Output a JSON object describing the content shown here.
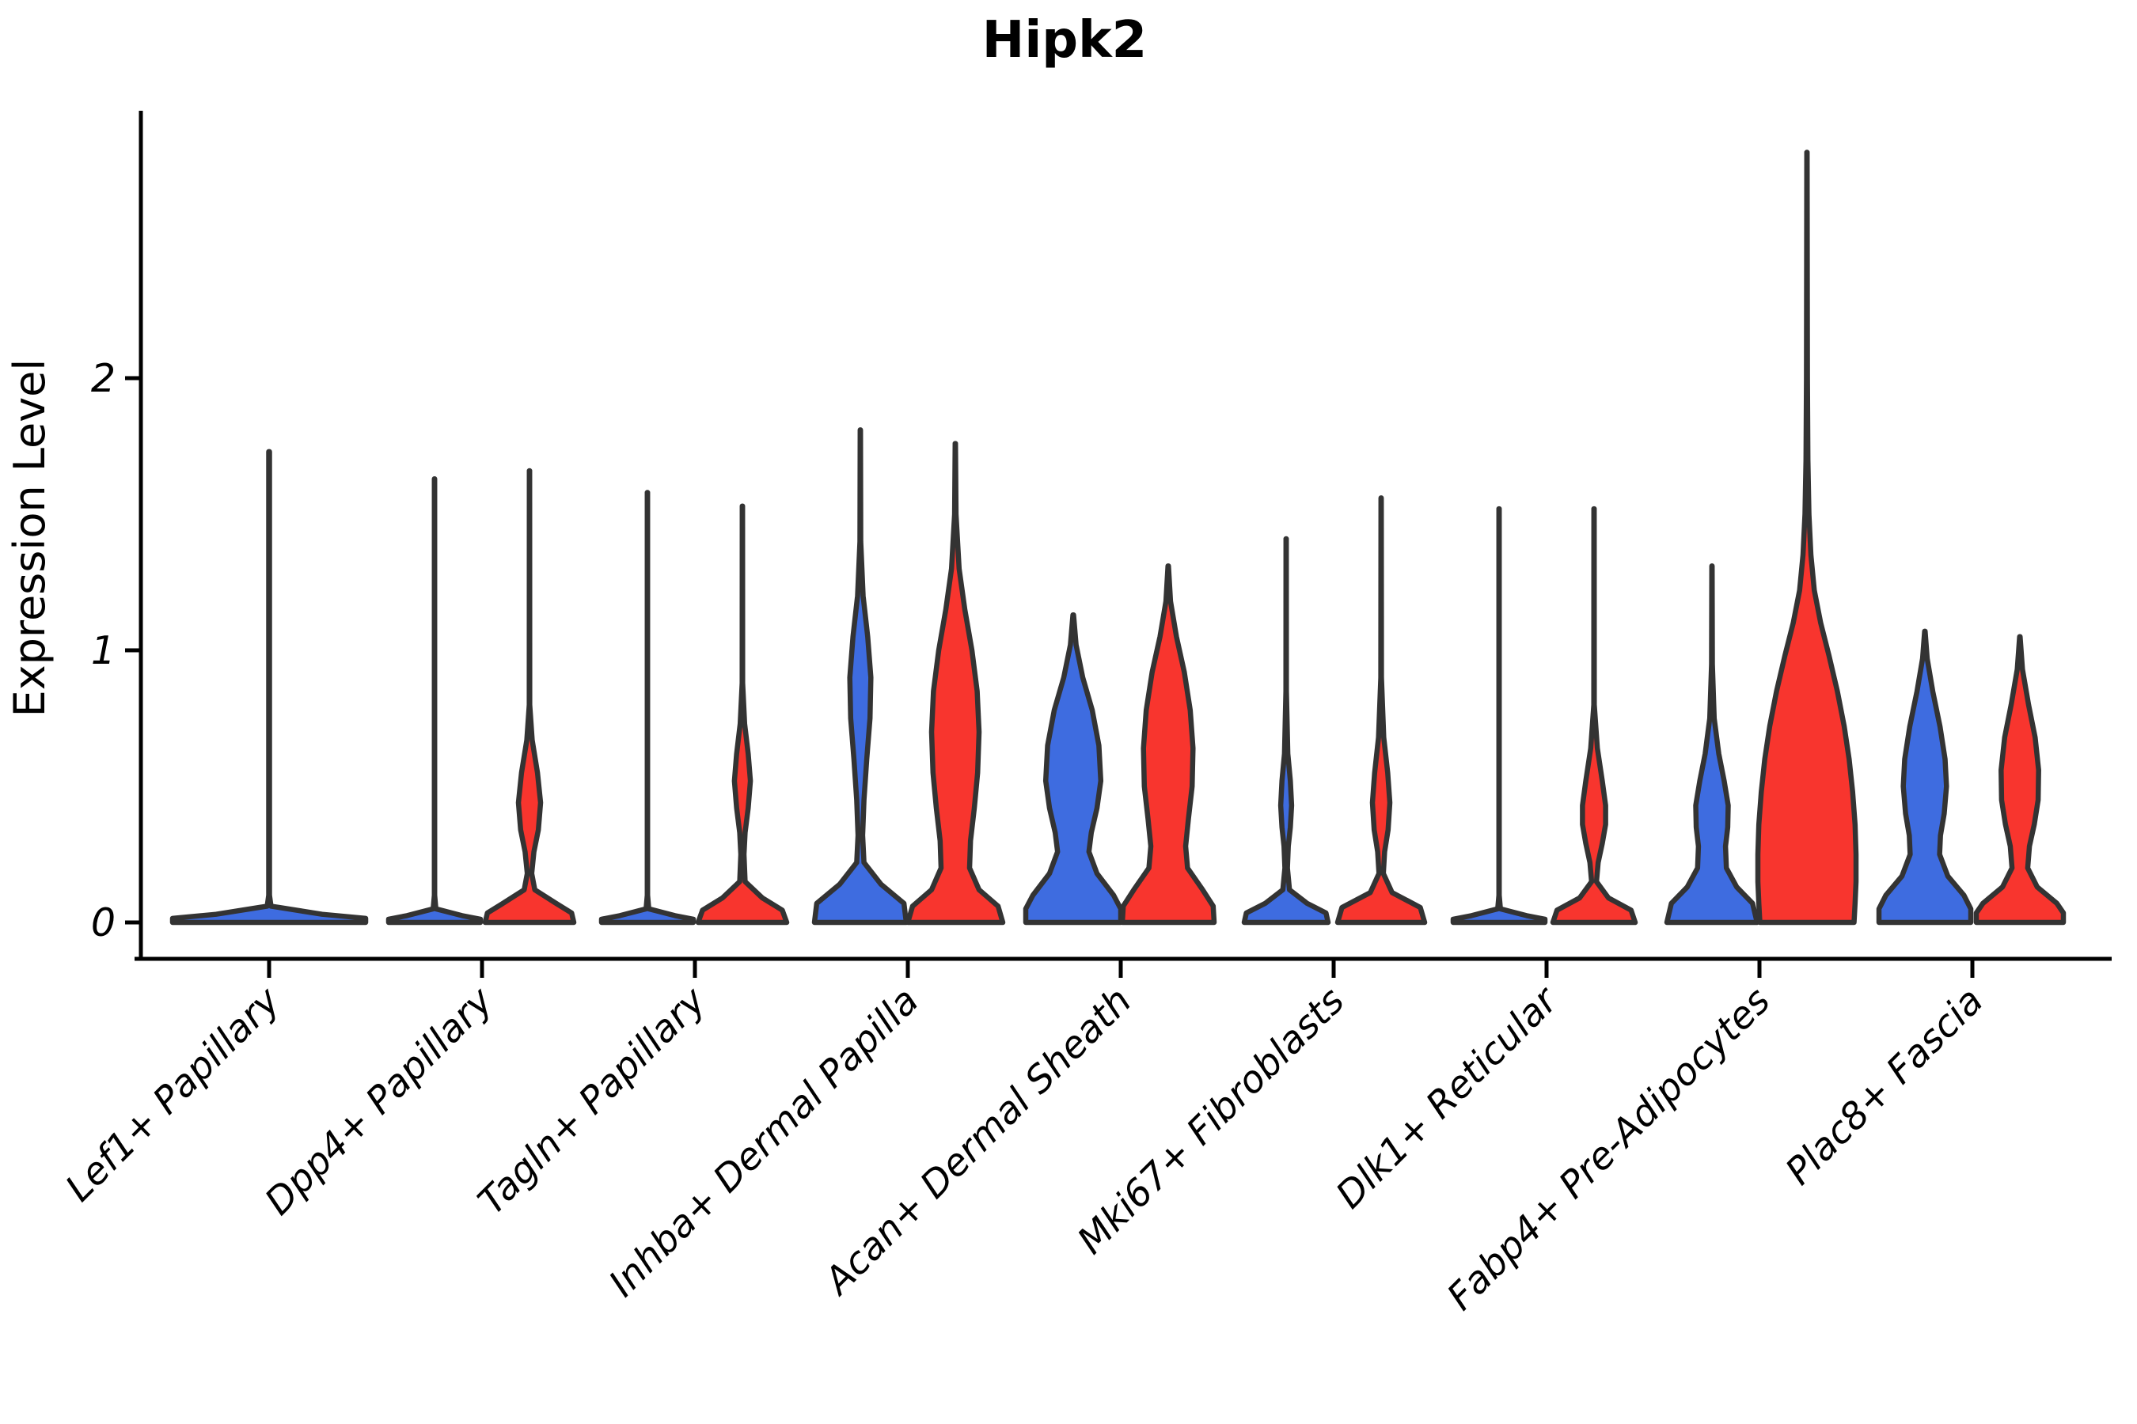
{
  "figure": {
    "title": "Hipk2"
  },
  "chart_data": {
    "type": "violin",
    "title": "Hipk2",
    "xlabel": "",
    "ylabel": "Expression Level",
    "yticks": [
      0,
      1,
      2
    ],
    "ylim": [
      -0.07,
      2.97
    ],
    "grid": false,
    "legend": null,
    "colors": {
      "blue": "#3e6ce0",
      "red": "#f8352e",
      "edge": "#333333",
      "axis": "#000000"
    },
    "categories": [
      "Lef1+ Papillary",
      "Dpp4+ Papillary",
      "Tagln+ Papillary",
      "Inhba+ Dermal Papilla",
      "Acan+ Dermal Sheath",
      "Mki67+ Fibroblasts",
      "Dlk1+ Reticular",
      "Fabp4+ Pre-Adipocytes",
      "Plac8+ Fascia"
    ],
    "violins": [
      {
        "category": "Lef1+ Papillary",
        "blue": {
          "max": 1.73,
          "offset": 0,
          "halfwidth": 122,
          "profile": [
            [
              1.73,
              0.004
            ],
            [
              0.1,
              0.004
            ],
            [
              0.06,
              0.02
            ],
            [
              0.03,
              0.55
            ],
            [
              0.015,
              1.0
            ],
            [
              0,
              1.0
            ]
          ]
        },
        "red": null
      },
      {
        "category": "Dpp4+ Papillary",
        "blue": {
          "max": 1.63,
          "offset": -60,
          "halfwidth": 58,
          "profile": [
            [
              1.63,
              0.004
            ],
            [
              0.1,
              0.004
            ],
            [
              0.05,
              0.03
            ],
            [
              0.025,
              0.6
            ],
            [
              0.012,
              1.0
            ],
            [
              0,
              1.0
            ]
          ]
        },
        "red": {
          "max": 1.66,
          "offset": 60,
          "halfwidth": 56,
          "profile": [
            [
              1.66,
              0.004
            ],
            [
              0.8,
              0.006
            ],
            [
              0.67,
              0.06
            ],
            [
              0.55,
              0.18
            ],
            [
              0.44,
              0.25
            ],
            [
              0.34,
              0.2
            ],
            [
              0.26,
              0.1
            ],
            [
              0.18,
              0.05
            ],
            [
              0.12,
              0.12
            ],
            [
              0.07,
              0.6
            ],
            [
              0.035,
              0.95
            ],
            [
              0,
              1.0
            ]
          ]
        }
      },
      {
        "category": "Tagln+ Papillary",
        "blue": {
          "max": 1.58,
          "offset": -60,
          "halfwidth": 58,
          "profile": [
            [
              1.58,
              0.004
            ],
            [
              0.1,
              0.004
            ],
            [
              0.05,
              0.03
            ],
            [
              0.025,
              0.6
            ],
            [
              0.012,
              1.0
            ],
            [
              0,
              1.0
            ]
          ]
        },
        "red": {
          "max": 1.53,
          "offset": 60,
          "halfwidth": 56,
          "profile": [
            [
              1.53,
              0.004
            ],
            [
              0.88,
              0.005
            ],
            [
              0.73,
              0.05
            ],
            [
              0.62,
              0.13
            ],
            [
              0.52,
              0.18
            ],
            [
              0.42,
              0.13
            ],
            [
              0.33,
              0.06
            ],
            [
              0.25,
              0.035
            ],
            [
              0.15,
              0.06
            ],
            [
              0.09,
              0.45
            ],
            [
              0.045,
              0.9
            ],
            [
              0,
              1.0
            ]
          ]
        }
      },
      {
        "category": "Inhba+ Dermal Papilla",
        "blue": {
          "max": 1.81,
          "offset": -60,
          "halfwidth": 58,
          "profile": [
            [
              1.81,
              0.004
            ],
            [
              1.4,
              0.008
            ],
            [
              1.2,
              0.06
            ],
            [
              1.05,
              0.16
            ],
            [
              0.9,
              0.23
            ],
            [
              0.75,
              0.21
            ],
            [
              0.6,
              0.14
            ],
            [
              0.45,
              0.08
            ],
            [
              0.32,
              0.05
            ],
            [
              0.22,
              0.08
            ],
            [
              0.14,
              0.45
            ],
            [
              0.07,
              0.95
            ],
            [
              0,
              1.0
            ]
          ]
        },
        "red": {
          "max": 1.76,
          "offset": 60,
          "halfwidth": 60,
          "profile": [
            [
              1.76,
              0.004
            ],
            [
              1.5,
              0.015
            ],
            [
              1.3,
              0.08
            ],
            [
              1.15,
              0.2
            ],
            [
              1.0,
              0.35
            ],
            [
              0.85,
              0.46
            ],
            [
              0.7,
              0.5
            ],
            [
              0.55,
              0.47
            ],
            [
              0.42,
              0.4
            ],
            [
              0.3,
              0.32
            ],
            [
              0.2,
              0.3
            ],
            [
              0.12,
              0.5
            ],
            [
              0.06,
              0.9
            ],
            [
              0,
              1.0
            ]
          ]
        }
      },
      {
        "category": "Acan+ Dermal Sheath",
        "blue": {
          "max": 1.13,
          "offset": -60,
          "halfwidth": 60,
          "profile": [
            [
              1.13,
              0.006
            ],
            [
              1.02,
              0.06
            ],
            [
              0.9,
              0.2
            ],
            [
              0.78,
              0.4
            ],
            [
              0.65,
              0.54
            ],
            [
              0.52,
              0.58
            ],
            [
              0.42,
              0.5
            ],
            [
              0.33,
              0.38
            ],
            [
              0.26,
              0.33
            ],
            [
              0.18,
              0.5
            ],
            [
              0.1,
              0.85
            ],
            [
              0.05,
              1.0
            ],
            [
              0,
              1.0
            ]
          ]
        },
        "red": {
          "max": 1.31,
          "offset": 60,
          "halfwidth": 58,
          "profile": [
            [
              1.31,
              0.006
            ],
            [
              1.18,
              0.05
            ],
            [
              1.05,
              0.18
            ],
            [
              0.92,
              0.35
            ],
            [
              0.78,
              0.48
            ],
            [
              0.64,
              0.54
            ],
            [
              0.5,
              0.52
            ],
            [
              0.38,
              0.44
            ],
            [
              0.28,
              0.38
            ],
            [
              0.2,
              0.42
            ],
            [
              0.12,
              0.75
            ],
            [
              0.06,
              0.98
            ],
            [
              0,
              1.0
            ]
          ]
        }
      },
      {
        "category": "Mki67+ Fibroblasts",
        "blue": {
          "max": 1.41,
          "offset": -60,
          "halfwidth": 53,
          "profile": [
            [
              1.41,
              0.004
            ],
            [
              0.85,
              0.005
            ],
            [
              0.62,
              0.04
            ],
            [
              0.52,
              0.1
            ],
            [
              0.43,
              0.13
            ],
            [
              0.35,
              0.1
            ],
            [
              0.28,
              0.05
            ],
            [
              0.2,
              0.03
            ],
            [
              0.12,
              0.08
            ],
            [
              0.07,
              0.5
            ],
            [
              0.035,
              0.95
            ],
            [
              0,
              1.0
            ]
          ]
        },
        "red": {
          "max": 1.56,
          "offset": 60,
          "halfwidth": 55,
          "profile": [
            [
              1.56,
              0.004
            ],
            [
              0.9,
              0.008
            ],
            [
              0.68,
              0.06
            ],
            [
              0.55,
              0.15
            ],
            [
              0.44,
              0.2
            ],
            [
              0.34,
              0.16
            ],
            [
              0.26,
              0.08
            ],
            [
              0.18,
              0.05
            ],
            [
              0.11,
              0.25
            ],
            [
              0.055,
              0.9
            ],
            [
              0,
              1.0
            ]
          ]
        }
      },
      {
        "category": "Dlk1+ Reticular",
        "blue": {
          "max": 1.52,
          "offset": -60,
          "halfwidth": 58,
          "profile": [
            [
              1.52,
              0.004
            ],
            [
              0.1,
              0.004
            ],
            [
              0.05,
              0.03
            ],
            [
              0.025,
              0.6
            ],
            [
              0.012,
              1.0
            ],
            [
              0,
              1.0
            ]
          ]
        },
        "red": {
          "max": 1.52,
          "offset": 60,
          "halfwidth": 52,
          "profile": [
            [
              1.52,
              0.004
            ],
            [
              0.8,
              0.006
            ],
            [
              0.64,
              0.08
            ],
            [
              0.52,
              0.2
            ],
            [
              0.43,
              0.28
            ],
            [
              0.36,
              0.28
            ],
            [
              0.29,
              0.2
            ],
            [
              0.22,
              0.1
            ],
            [
              0.15,
              0.06
            ],
            [
              0.09,
              0.35
            ],
            [
              0.045,
              0.9
            ],
            [
              0,
              1.0
            ]
          ]
        }
      },
      {
        "category": "Fabp4+ Pre-Adipocytes",
        "blue": {
          "max": 1.31,
          "offset": -60,
          "halfwidth": 57,
          "profile": [
            [
              1.31,
              0.004
            ],
            [
              0.95,
              0.008
            ],
            [
              0.75,
              0.05
            ],
            [
              0.62,
              0.15
            ],
            [
              0.52,
              0.27
            ],
            [
              0.43,
              0.36
            ],
            [
              0.35,
              0.35
            ],
            [
              0.28,
              0.3
            ],
            [
              0.2,
              0.32
            ],
            [
              0.13,
              0.55
            ],
            [
              0.07,
              0.9
            ],
            [
              0,
              1.0
            ]
          ]
        },
        "red": {
          "max": 2.83,
          "offset": 60,
          "halfwidth": 62,
          "profile": [
            [
              2.83,
              0.004
            ],
            [
              2.4,
              0.006
            ],
            [
              2.0,
              0.01
            ],
            [
              1.7,
              0.02
            ],
            [
              1.5,
              0.04
            ],
            [
              1.35,
              0.08
            ],
            [
              1.22,
              0.15
            ],
            [
              1.1,
              0.28
            ],
            [
              0.98,
              0.45
            ],
            [
              0.85,
              0.62
            ],
            [
              0.72,
              0.76
            ],
            [
              0.6,
              0.86
            ],
            [
              0.48,
              0.93
            ],
            [
              0.36,
              0.98
            ],
            [
              0.25,
              1.0
            ],
            [
              0.15,
              1.0
            ],
            [
              0.07,
              0.98
            ],
            [
              0,
              0.96
            ]
          ]
        }
      },
      {
        "category": "Plac8+ Fascia",
        "blue": {
          "max": 1.07,
          "offset": -60,
          "halfwidth": 58,
          "profile": [
            [
              1.07,
              0.006
            ],
            [
              0.97,
              0.05
            ],
            [
              0.85,
              0.17
            ],
            [
              0.72,
              0.33
            ],
            [
              0.6,
              0.44
            ],
            [
              0.5,
              0.47
            ],
            [
              0.4,
              0.42
            ],
            [
              0.32,
              0.34
            ],
            [
              0.25,
              0.32
            ],
            [
              0.17,
              0.5
            ],
            [
              0.1,
              0.85
            ],
            [
              0.05,
              1.0
            ],
            [
              0,
              1.0
            ]
          ]
        },
        "red": {
          "max": 1.05,
          "offset": 60,
          "halfwidth": 55,
          "profile": [
            [
              1.05,
              0.006
            ],
            [
              0.93,
              0.06
            ],
            [
              0.8,
              0.2
            ],
            [
              0.68,
              0.35
            ],
            [
              0.56,
              0.43
            ],
            [
              0.45,
              0.42
            ],
            [
              0.36,
              0.33
            ],
            [
              0.28,
              0.22
            ],
            [
              0.2,
              0.18
            ],
            [
              0.13,
              0.4
            ],
            [
              0.07,
              0.85
            ],
            [
              0.035,
              1.0
            ],
            [
              0,
              1.0
            ]
          ]
        }
      }
    ]
  }
}
